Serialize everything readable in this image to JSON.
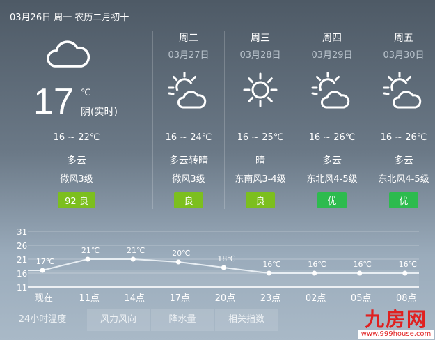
{
  "header": {
    "date": "03月26日 周一 农历二月初十"
  },
  "today": {
    "temp": "17",
    "unit": "℃",
    "condition_now": "阴(实时)",
    "range": "16 ~ 22℃",
    "weather": "多云",
    "wind": "微风3级",
    "aqi": "92 良",
    "icon": "cloud-icon"
  },
  "forecast": [
    {
      "day": "周二",
      "date": "03月27日",
      "range": "16 ~ 24℃",
      "weather": "多云转晴",
      "wind": "微风3级",
      "aqi": "良",
      "icon": "partly-cloudy-icon"
    },
    {
      "day": "周三",
      "date": "03月28日",
      "range": "16 ~ 25℃",
      "weather": "晴",
      "wind": "东南风3-4级",
      "aqi": "良",
      "icon": "sun-icon"
    },
    {
      "day": "周四",
      "date": "03月29日",
      "range": "16 ~ 26℃",
      "weather": "多云",
      "wind": "东北风4-5级",
      "aqi": "优",
      "icon": "partly-cloudy-icon"
    },
    {
      "day": "周五",
      "date": "03月30日",
      "range": "16 ~ 26℃",
      "weather": "多云",
      "wind": "东北风4-5级",
      "aqi": "优",
      "icon": "partly-cloudy-icon"
    }
  ],
  "colors": {
    "aqi_good": "#7cbf1e",
    "aqi_excellent": "#2dbb4e",
    "logo": "#e02020"
  },
  "chart_data": {
    "type": "line",
    "categories": [
      "现在",
      "11点",
      "14点",
      "17点",
      "20点",
      "23点",
      "02点",
      "05点",
      "08点"
    ],
    "values": [
      17,
      21,
      21,
      20,
      18,
      16,
      16,
      16,
      16
    ],
    "labels": [
      "17℃",
      "21℃",
      "21℃",
      "20℃",
      "18℃",
      "16℃",
      "16℃",
      "16℃",
      "16℃"
    ],
    "yticks": [
      31,
      26,
      21,
      16,
      11
    ],
    "ylim": [
      11,
      31
    ],
    "grid": true
  },
  "tabs": [
    "24小时温度",
    "风力风向",
    "降水量",
    "相关指数"
  ],
  "logo": {
    "name": "九房网",
    "url": "www.999house.com"
  }
}
